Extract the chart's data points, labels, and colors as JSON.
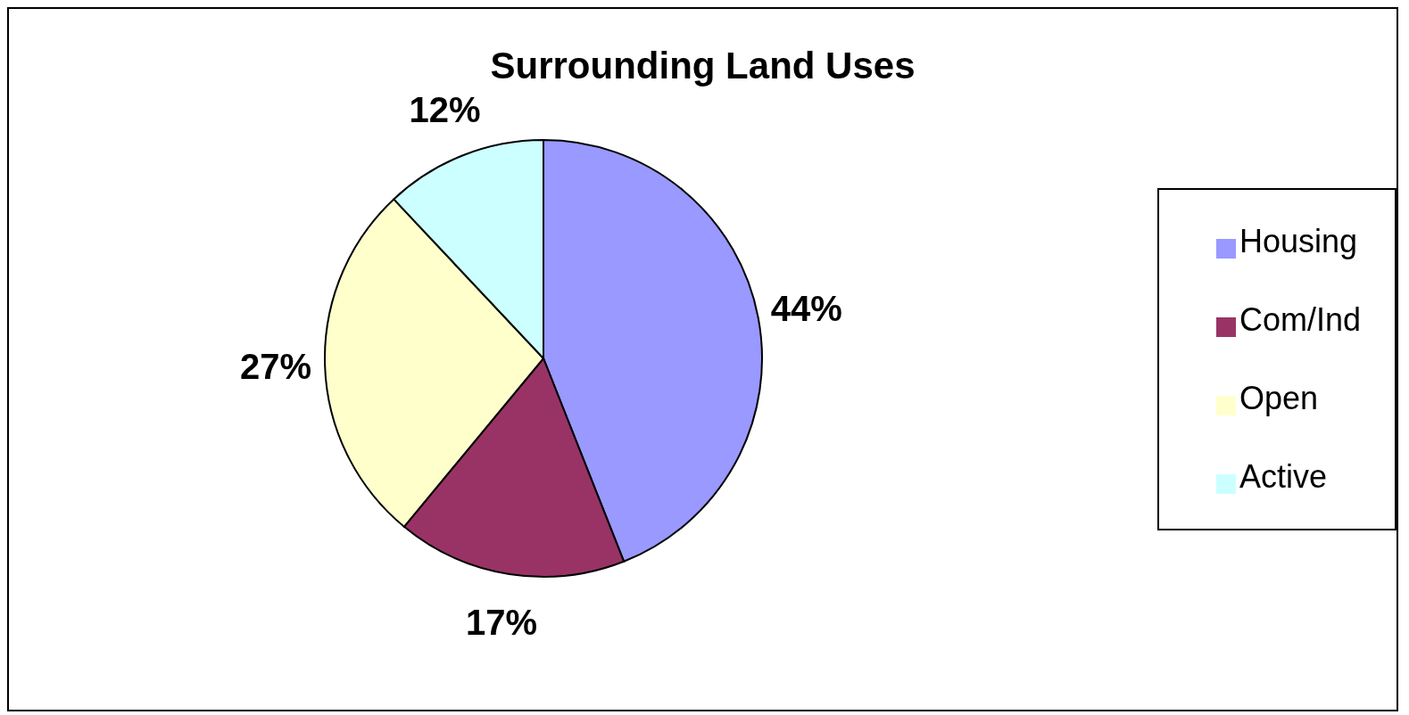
{
  "chart_data": {
    "type": "pie",
    "title": "Surrounding Land Uses",
    "categories": [
      "Housing",
      "Com/Ind",
      "Open",
      "Active"
    ],
    "values": [
      44,
      17,
      27,
      12
    ],
    "colors": [
      "#9999ff",
      "#993366",
      "#ffffcc",
      "#ccffff"
    ],
    "value_labels": [
      "44%",
      "17%",
      "27%",
      "12%"
    ],
    "legend": "right"
  }
}
